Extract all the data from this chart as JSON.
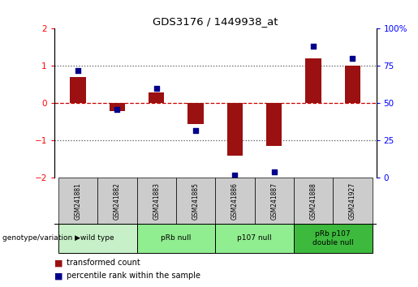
{
  "title": "GDS3176 / 1449938_at",
  "samples": [
    "GSM241881",
    "GSM241882",
    "GSM241883",
    "GSM241885",
    "GSM241886",
    "GSM241887",
    "GSM241888",
    "GSM241927"
  ],
  "transformed_counts": [
    0.7,
    -0.2,
    0.3,
    -0.55,
    -1.4,
    -1.15,
    1.2,
    1.0
  ],
  "percentile_ranks": [
    72,
    46,
    60,
    32,
    2,
    4,
    88,
    80
  ],
  "group_configs": [
    {
      "indices": [
        0,
        1
      ],
      "label": "wild type",
      "color": "#c8f0c8"
    },
    {
      "indices": [
        2,
        3
      ],
      "label": "pRb null",
      "color": "#90ee90"
    },
    {
      "indices": [
        4,
        5
      ],
      "label": "p107 null",
      "color": "#90ee90"
    },
    {
      "indices": [
        6,
        7
      ],
      "label": "pRb p107\ndouble null",
      "color": "#3dba3d"
    }
  ],
  "ylim_left": [
    -2,
    2
  ],
  "ylim_right": [
    0,
    100
  ],
  "yticks_left": [
    -2,
    -1,
    0,
    1,
    2
  ],
  "yticks_right": [
    0,
    25,
    50,
    75,
    100
  ],
  "bar_color": "#9b1010",
  "dot_color": "#00008b",
  "hline_color": "#cc0000",
  "dotted_color": "#555555",
  "background_plot": "#ffffff",
  "sample_box_color": "#cccccc",
  "legend_red_label": "transformed count",
  "legend_blue_label": "percentile rank within the sample",
  "genotype_label": "genotype/variation"
}
